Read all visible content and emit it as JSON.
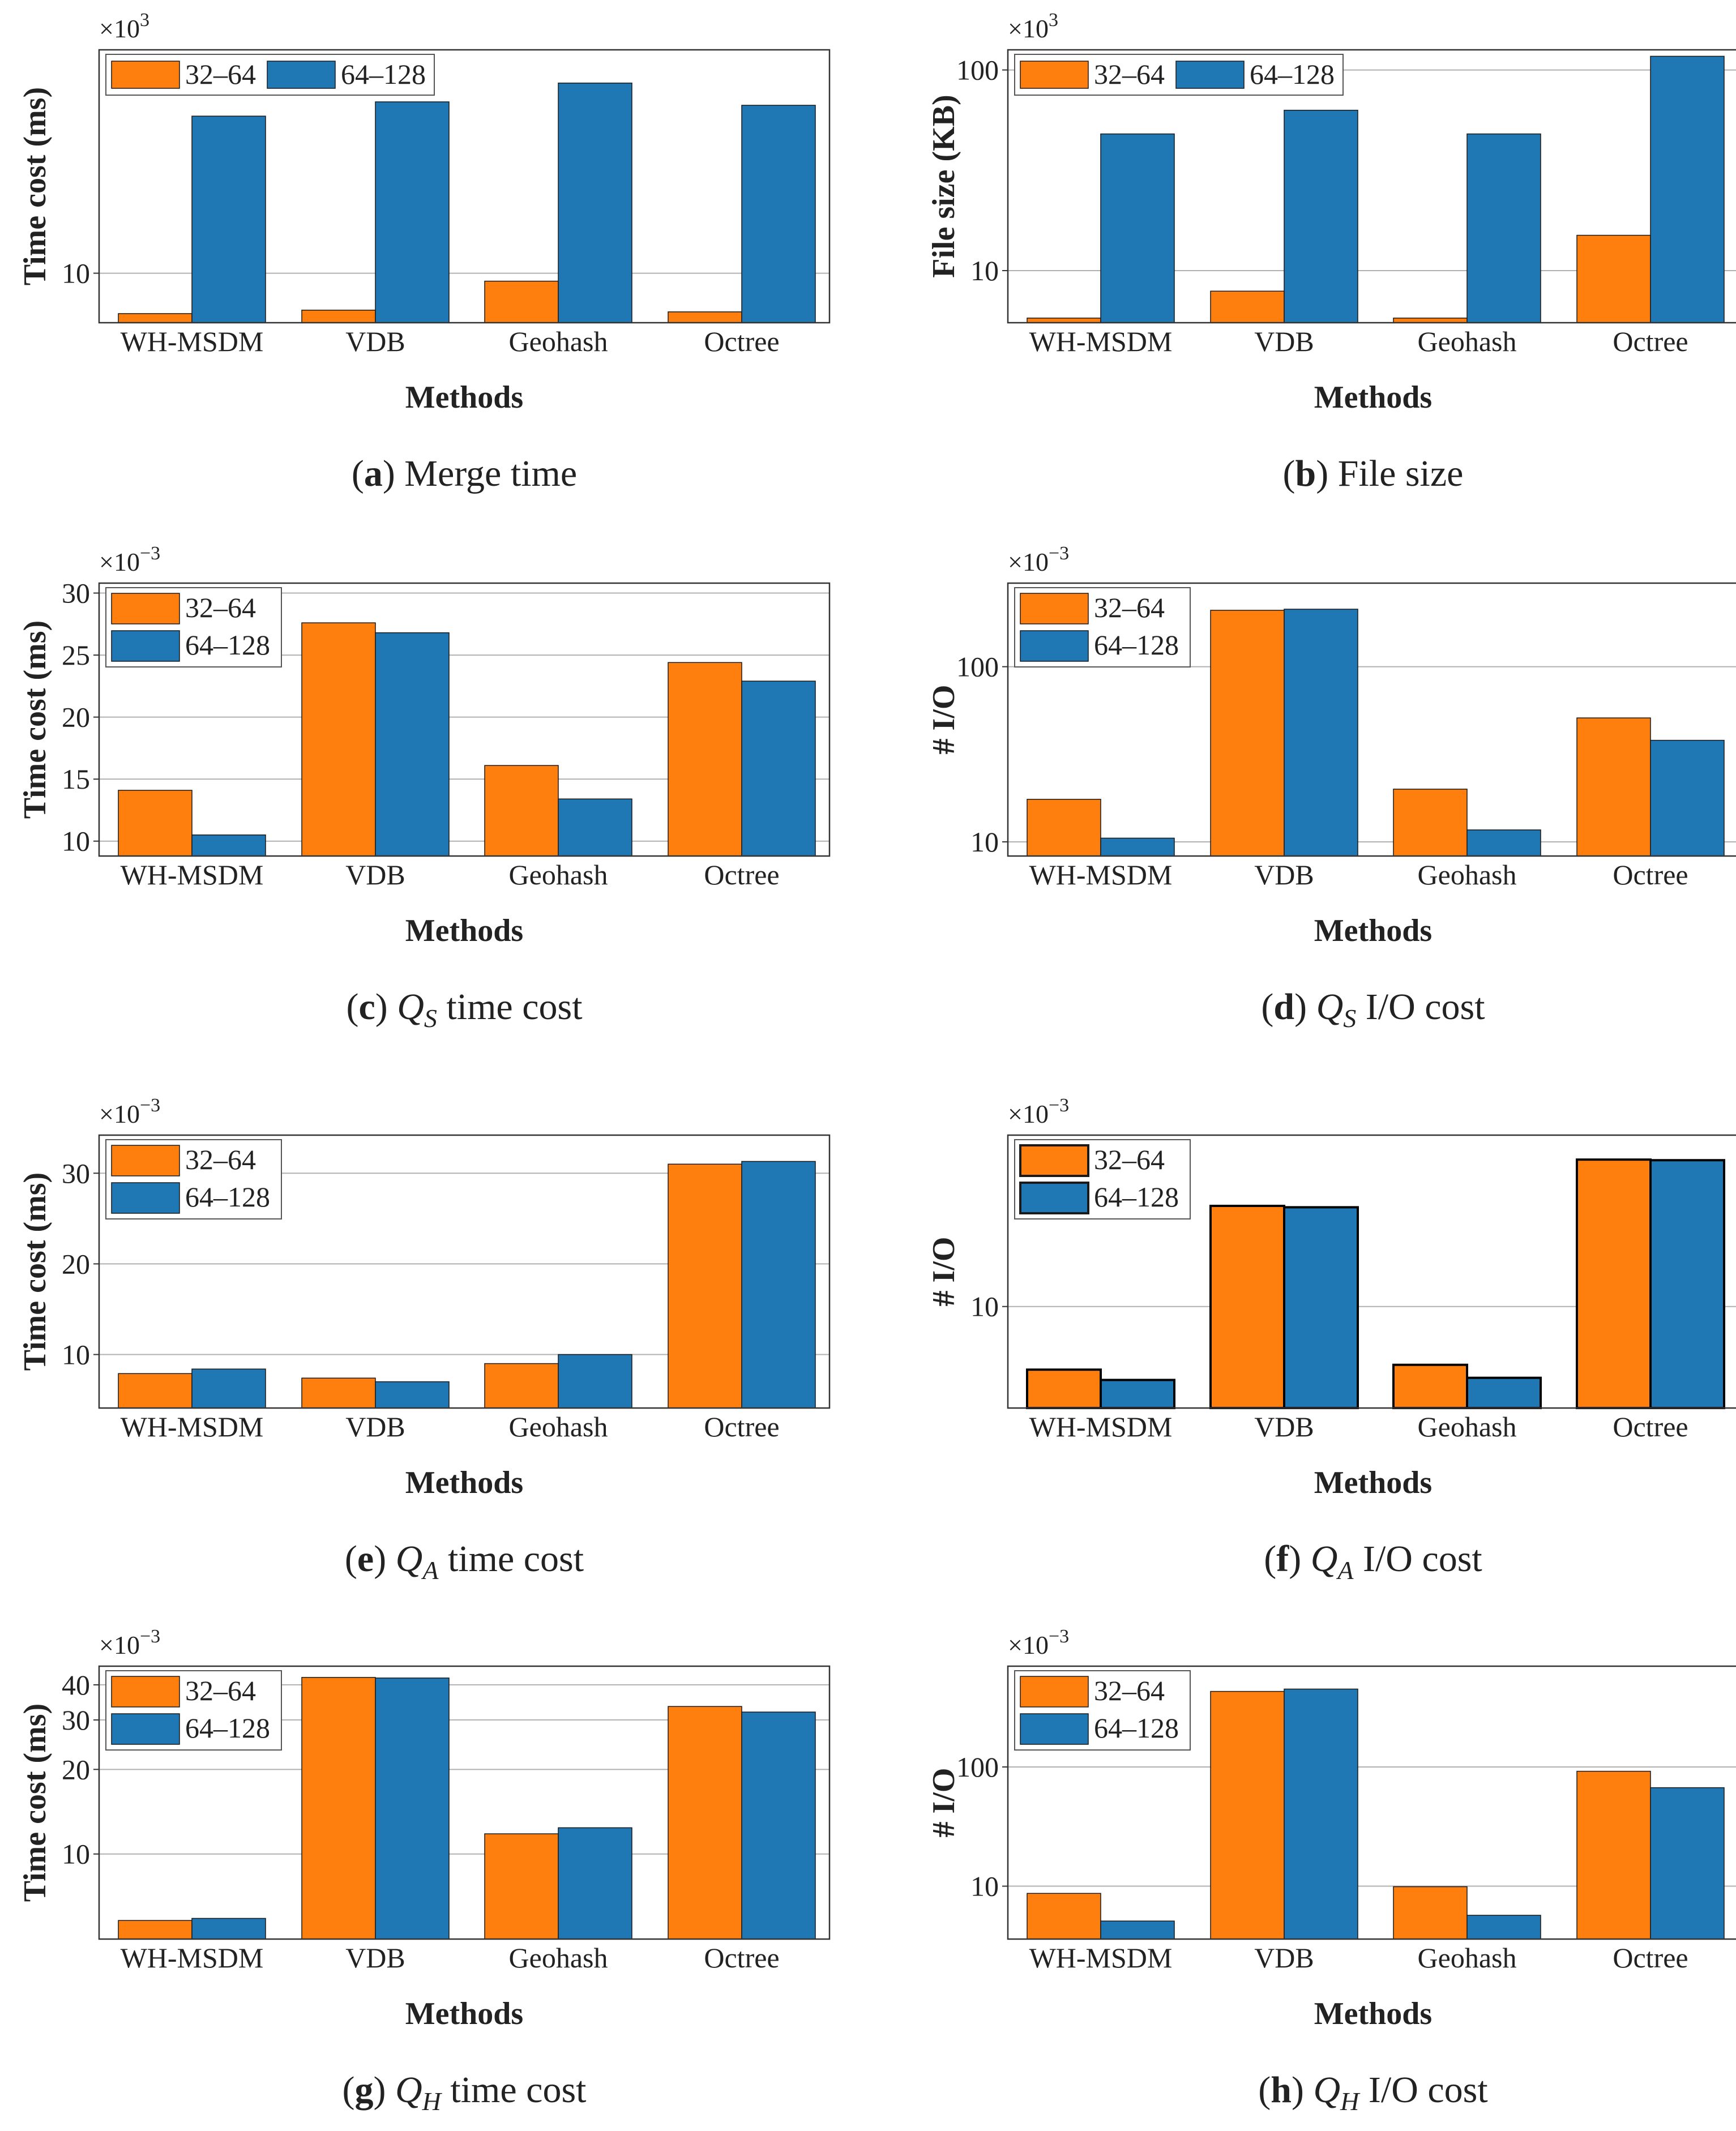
{
  "figure": {
    "charts_order": [
      "a",
      "b",
      "c",
      "d",
      "e",
      "f",
      "g",
      "h"
    ]
  },
  "colors": {
    "series1": "#ff7f0e",
    "series2": "#1f77b4",
    "grid": "#b0b0b0",
    "axis": "#333333"
  },
  "chart_data": [
    {
      "id": "a",
      "type": "bar",
      "yscale": "log",
      "caption_letter": "a",
      "caption_text": "Merge time",
      "ylabel": "Time cost (ms)",
      "xlabel": "Methods",
      "multiplier_base": "×10",
      "multiplier_exp": "3",
      "categories": [
        "WH-MSDM",
        "VDB",
        "Geohash",
        "Octree"
      ],
      "series": [
        {
          "name": "32–64",
          "values": [
            7.3,
            7.5,
            9.4,
            7.4
          ]
        },
        {
          "name": "64–128",
          "values": [
            34,
            38,
            44,
            37
          ]
        }
      ],
      "ylim": [
        6.8,
        57
      ],
      "yticks": [
        10
      ],
      "ytick_labels": [
        "10"
      ],
      "legend": "top-left-row",
      "bordered_bars": false
    },
    {
      "id": "b",
      "type": "bar",
      "yscale": "log",
      "caption_letter": "b",
      "caption_text": "File size",
      "ylabel": "File size (KB)",
      "xlabel": "Methods",
      "multiplier_base": "×10",
      "multiplier_exp": "3",
      "categories": [
        "WH-MSDM",
        "VDB",
        "Geohash",
        "Octree"
      ],
      "series": [
        {
          "name": "32–64",
          "values": [
            5.8,
            7.9,
            5.8,
            15
          ]
        },
        {
          "name": "64–128",
          "values": [
            48,
            63,
            48,
            117
          ]
        }
      ],
      "ylim": [
        5.5,
        126
      ],
      "yticks": [
        10,
        100
      ],
      "ytick_labels": [
        "10",
        "100"
      ],
      "legend": "top-left-row",
      "bordered_bars": false
    },
    {
      "id": "c",
      "type": "bar",
      "yscale": "linear",
      "caption_letter": "c",
      "caption_q": "Q",
      "caption_sub": "S",
      "caption_text": "time cost",
      "ylabel": "Time cost (ms)",
      "xlabel": "Methods",
      "multiplier_base": "×10",
      "multiplier_exp": "−3",
      "categories": [
        "WH-MSDM",
        "VDB",
        "Geohash",
        "Octree"
      ],
      "series": [
        {
          "name": "32–64",
          "values": [
            14.1,
            27.6,
            16.1,
            24.4
          ]
        },
        {
          "name": "64–128",
          "values": [
            10.5,
            26.8,
            13.4,
            22.9
          ]
        }
      ],
      "ylim": [
        8.8,
        30.8
      ],
      "yticks": [
        10,
        15,
        20,
        25,
        30
      ],
      "ytick_labels": [
        "10",
        "15",
        "20",
        "25",
        "30"
      ],
      "legend": "top-left-stack",
      "bordered_bars": false
    },
    {
      "id": "d",
      "type": "bar",
      "yscale": "log",
      "caption_letter": "d",
      "caption_q": "Q",
      "caption_sub": "S",
      "caption_text": "I/O cost",
      "ylabel": "# I/O",
      "xlabel": "Methods",
      "multiplier_base": "×10",
      "multiplier_exp": "−3",
      "categories": [
        "WH-MSDM",
        "VDB",
        "Geohash",
        "Octree"
      ],
      "series": [
        {
          "name": "32–64",
          "values": [
            17.5,
            210,
            20,
            51
          ]
        },
        {
          "name": "64–128",
          "values": [
            10.5,
            213,
            11.7,
            38
          ]
        }
      ],
      "ylim": [
        8.3,
        300
      ],
      "yticks": [
        10,
        100
      ],
      "ytick_labels": [
        "10",
        "100"
      ],
      "legend": "top-left-stack",
      "bordered_bars": false
    },
    {
      "id": "e",
      "type": "bar",
      "yscale": "linear",
      "caption_letter": "e",
      "caption_q": "Q",
      "caption_sub": "A",
      "caption_text": "time cost",
      "ylabel": "Time cost (ms)",
      "xlabel": "Methods",
      "multiplier_base": "×10",
      "multiplier_exp": "−3",
      "categories": [
        "WH-MSDM",
        "VDB",
        "Geohash",
        "Octree"
      ],
      "series": [
        {
          "name": "32–64",
          "values": [
            7.9,
            7.4,
            9.0,
            31.0
          ]
        },
        {
          "name": "64–128",
          "values": [
            8.4,
            7.0,
            10.0,
            31.3
          ]
        }
      ],
      "ylim": [
        4.1,
        34.2
      ],
      "yticks": [
        10,
        20,
        30
      ],
      "ytick_labels": [
        "10",
        "20",
        "30"
      ],
      "legend": "top-left-stack",
      "bordered_bars": false
    },
    {
      "id": "f",
      "type": "bar",
      "yscale": "log",
      "caption_letter": "f",
      "caption_q": "Q",
      "caption_sub": "A",
      "caption_text": "I/O cost",
      "ylabel": "# I/O",
      "xlabel": "Methods",
      "multiplier_base": "×10",
      "multiplier_exp": "−3",
      "categories": [
        "WH-MSDM",
        "VDB",
        "Geohash",
        "Octree"
      ],
      "series": [
        {
          "name": "32–64",
          "values": [
            5.7,
            24.5,
            5.95,
            37
          ]
        },
        {
          "name": "64–128",
          "values": [
            5.2,
            24.2,
            5.3,
            36.8
          ]
        }
      ],
      "ylim": [
        4.05,
        46
      ],
      "yticks": [
        10
      ],
      "ytick_labels": [
        "10"
      ],
      "legend": "top-left-stack",
      "bordered_bars": true
    },
    {
      "id": "g",
      "type": "bar",
      "yscale": "log",
      "caption_letter": "g",
      "caption_q": "Q",
      "caption_sub": "H",
      "caption_text": "time cost",
      "ylabel": "Time cost (ms)",
      "xlabel": "Methods",
      "multiplier_base": "×10",
      "multiplier_exp": "−3",
      "categories": [
        "WH-MSDM",
        "VDB",
        "Geohash",
        "Octree"
      ],
      "series": [
        {
          "name": "32–64",
          "values": [
            5.8,
            42.5,
            11.8,
            33.5
          ]
        },
        {
          "name": "64–128",
          "values": [
            5.9,
            42.3,
            12.4,
            32.0
          ]
        }
      ],
      "ylim": [
        4.98,
        46.6
      ],
      "yticks": [
        10,
        20,
        30,
        40
      ],
      "ytick_labels": [
        "10",
        "20",
        "30",
        "40"
      ],
      "legend": "top-left-stack",
      "bordered_bars": false
    },
    {
      "id": "h",
      "type": "bar",
      "yscale": "log",
      "caption_letter": "h",
      "caption_q": "Q",
      "caption_sub": "H",
      "caption_text": "I/O cost",
      "ylabel": "# I/O",
      "xlabel": "Methods",
      "multiplier_base": "×10",
      "multiplier_exp": "−3",
      "categories": [
        "WH-MSDM",
        "VDB",
        "Geohash",
        "Octree"
      ],
      "series": [
        {
          "name": "32–64",
          "values": [
            8.7,
            430,
            9.9,
            92
          ]
        },
        {
          "name": "64–128",
          "values": [
            5.1,
            450,
            5.7,
            67
          ]
        }
      ],
      "ylim": [
        3.6,
        700
      ],
      "yticks": [
        10,
        100
      ],
      "ytick_labels": [
        "10",
        "100"
      ],
      "legend": "top-left-stack",
      "bordered_bars": false
    }
  ]
}
